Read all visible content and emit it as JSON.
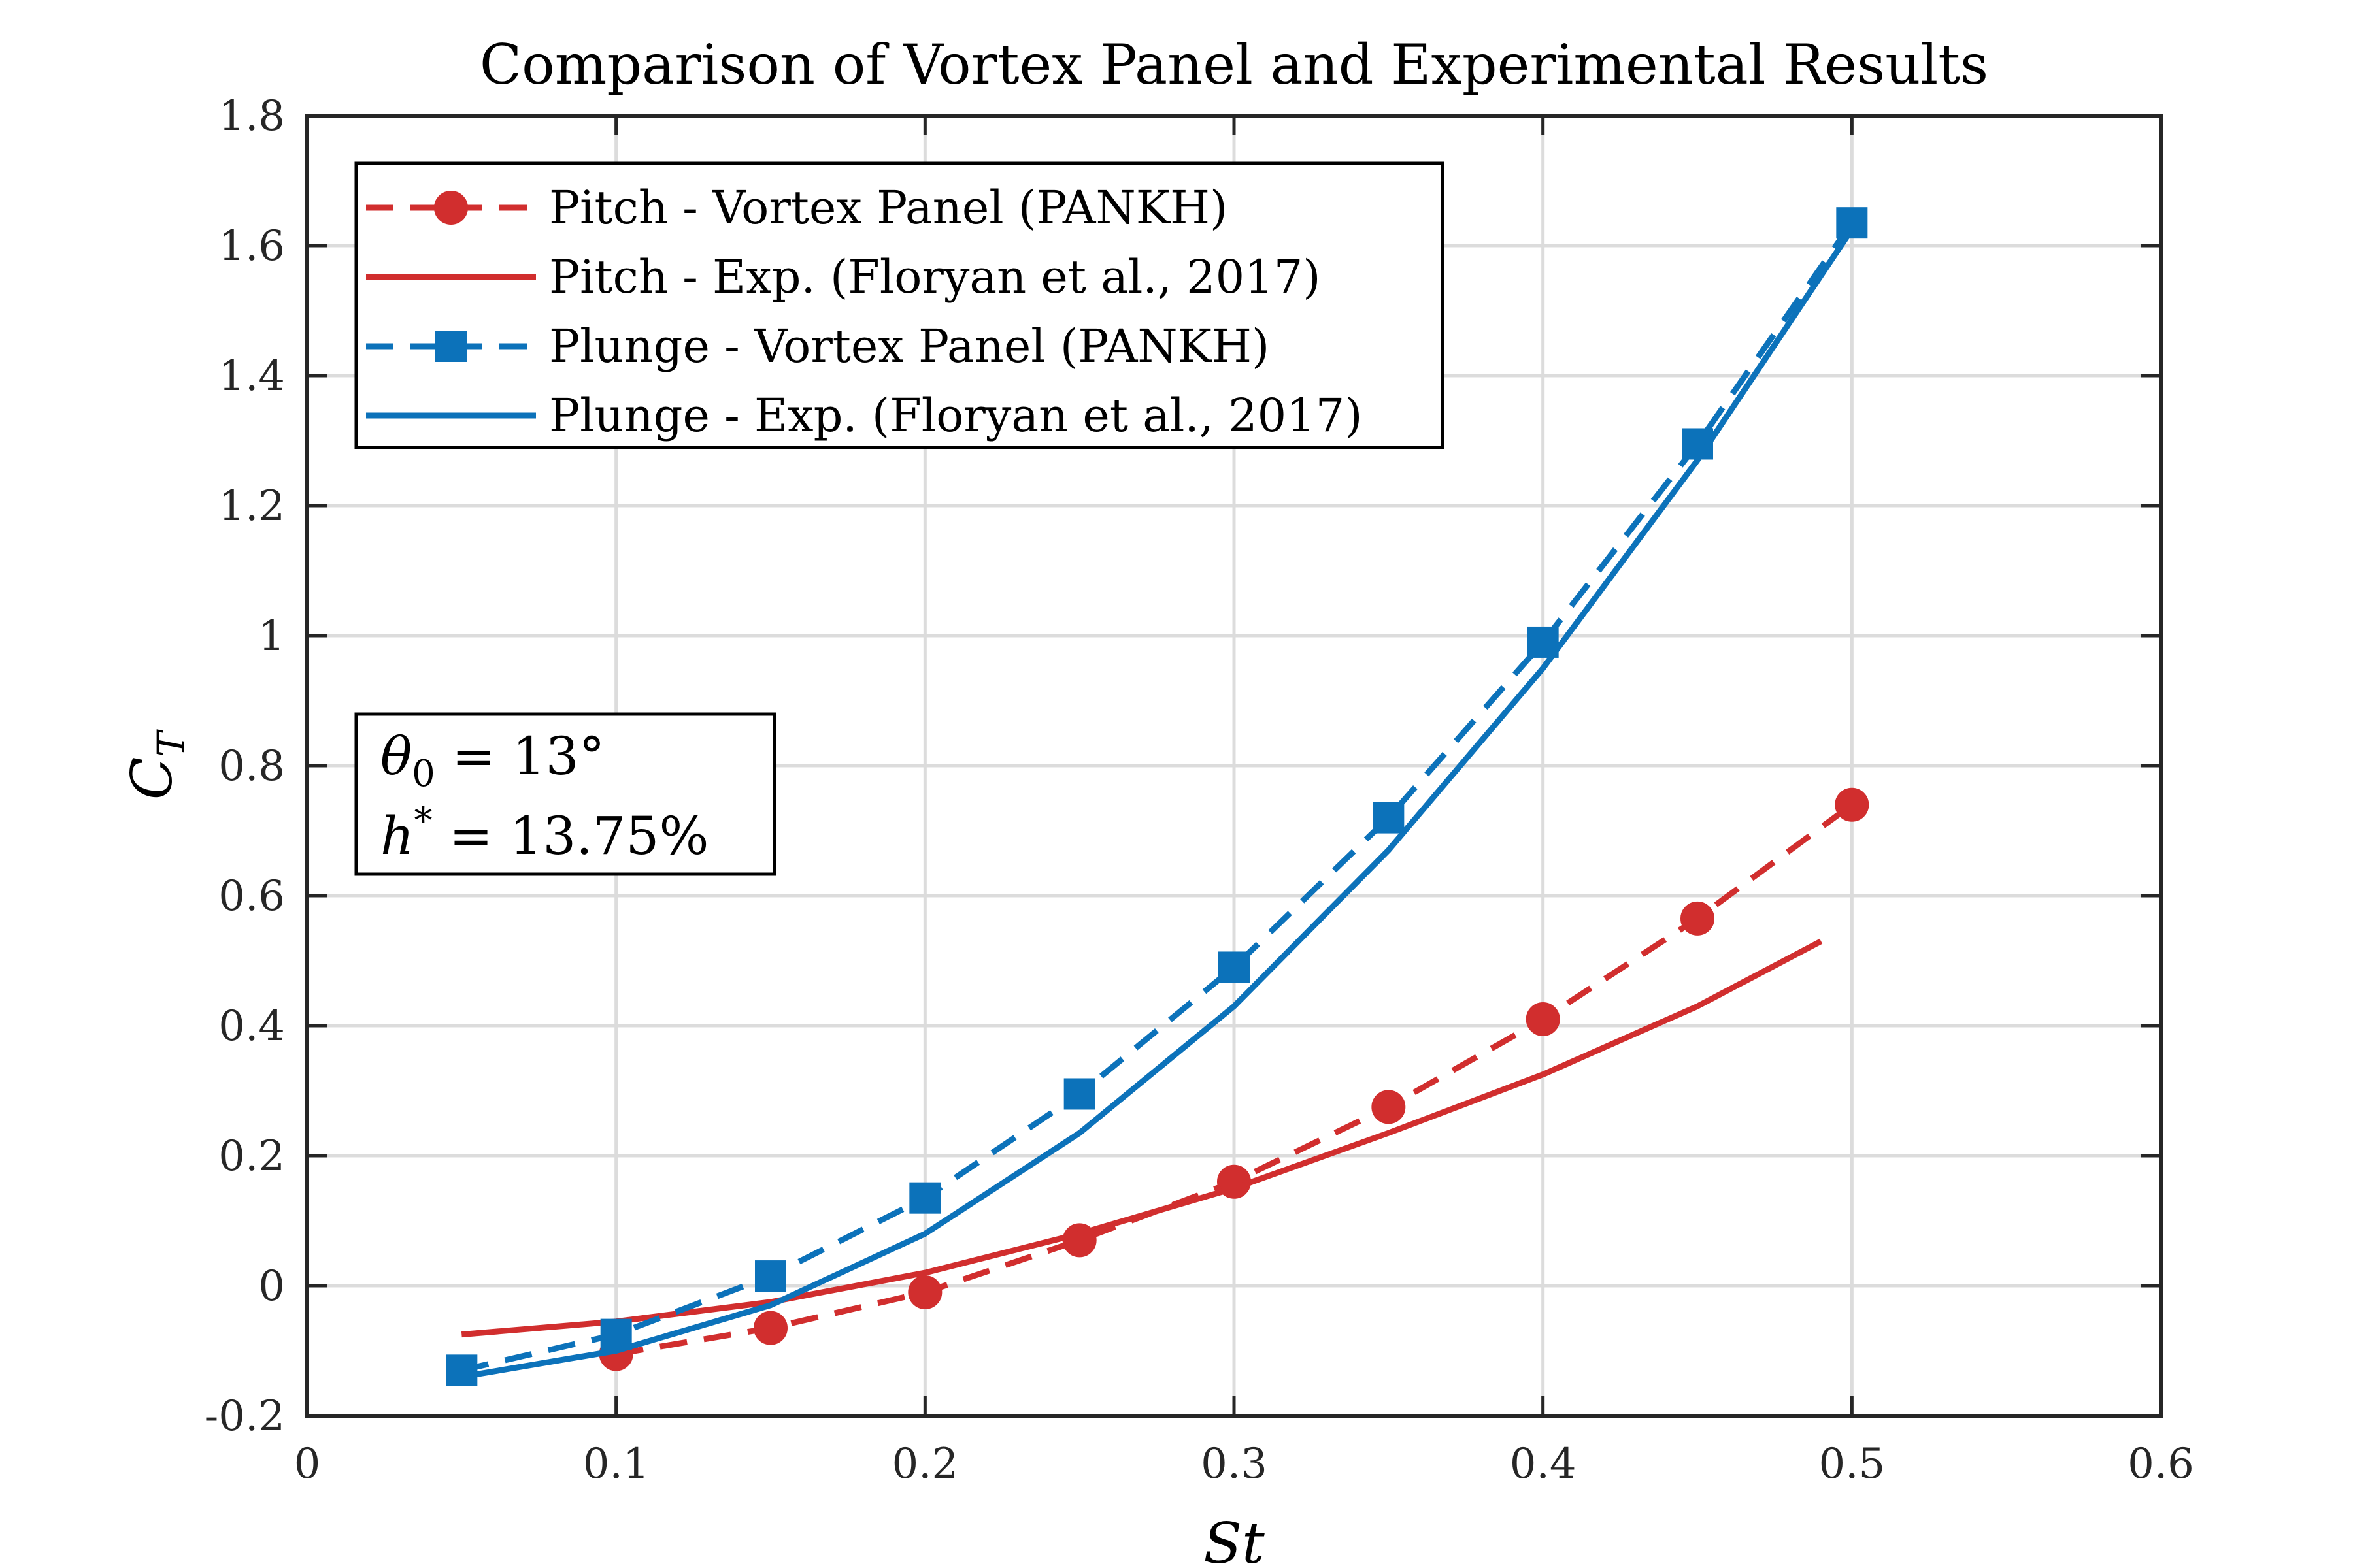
{
  "chart_data": {
    "type": "line",
    "title": "Comparison of Vortex Panel and Experimental Results",
    "xlabel": "St",
    "ylabel": "C",
    "ylabel_sub": "T",
    "xlim": [
      0,
      0.6
    ],
    "ylim": [
      -0.2,
      1.8
    ],
    "xticks": [
      0,
      0.1,
      0.2,
      0.3,
      0.4,
      0.5,
      0.6
    ],
    "xtick_labels": [
      "0",
      "0.1",
      "0.2",
      "0.3",
      "0.4",
      "0.5",
      "0.6"
    ],
    "yticks": [
      -0.2,
      0,
      0.2,
      0.4,
      0.6,
      0.8,
      1.0,
      1.2,
      1.4,
      1.6,
      1.8
    ],
    "ytick_labels": [
      "-0.2",
      "0",
      "0.2",
      "0.4",
      "0.6",
      "0.8",
      "1",
      "1.2",
      "1.4",
      "1.6",
      "1.8"
    ],
    "grid": true,
    "legend_position": "top-left",
    "annotation": {
      "line1_symbol": "θ",
      "line1_sub": "0",
      "line1_rest": " = 13°",
      "line2_symbol": "h",
      "line2_sup": "*",
      "line2_rest": " = 13.75%"
    },
    "series": [
      {
        "name": "Pitch - Vortex Panel (PANKH)",
        "color": "#D12E2E",
        "style": "dashed",
        "marker": "circle",
        "x": [
          0.1,
          0.15,
          0.2,
          0.25,
          0.3,
          0.35,
          0.4,
          0.45,
          0.5
        ],
        "y": [
          -0.105,
          -0.065,
          -0.01,
          0.07,
          0.16,
          0.275,
          0.41,
          0.565,
          0.74
        ]
      },
      {
        "name": "Pitch - Exp. (Floryan et al., 2017)",
        "color": "#D12E2E",
        "style": "solid",
        "marker": "none",
        "x": [
          0.05,
          0.1,
          0.15,
          0.2,
          0.25,
          0.3,
          0.35,
          0.4,
          0.45,
          0.49
        ],
        "y": [
          -0.075,
          -0.055,
          -0.025,
          0.02,
          0.08,
          0.15,
          0.235,
          0.325,
          0.43,
          0.53
        ]
      },
      {
        "name": "Plunge - Vortex Panel (PANKH)",
        "color": "#0C72BA",
        "style": "dashed",
        "marker": "square",
        "x": [
          0.05,
          0.1,
          0.15,
          0.2,
          0.25,
          0.3,
          0.35,
          0.4,
          0.45,
          0.5
        ],
        "y": [
          -0.13,
          -0.075,
          0.015,
          0.135,
          0.295,
          0.49,
          0.72,
          0.99,
          1.295,
          1.635
        ]
      },
      {
        "name": "Plunge - Exp. (Floryan et al., 2017)",
        "color": "#0C72BA",
        "style": "solid",
        "marker": "none",
        "x": [
          0.05,
          0.1,
          0.15,
          0.2,
          0.25,
          0.3,
          0.35,
          0.4,
          0.45,
          0.5
        ],
        "y": [
          -0.14,
          -0.1,
          -0.03,
          0.08,
          0.235,
          0.43,
          0.67,
          0.95,
          1.27,
          1.625
        ]
      }
    ]
  }
}
